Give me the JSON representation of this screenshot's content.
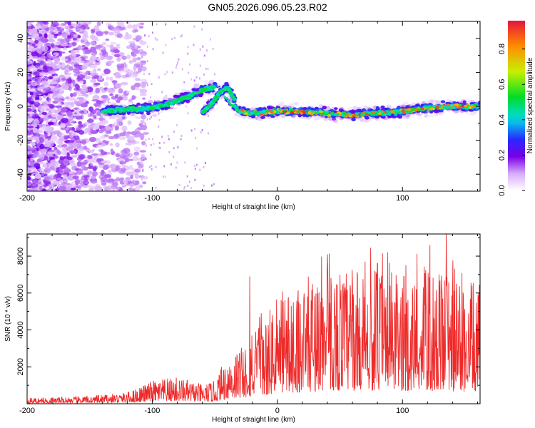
{
  "title": "GN05.2026.096.05.23.R02",
  "chart_data": [
    {
      "type": "heatmap",
      "xlabel": "Height of straight line (km)",
      "ylabel": "Frequency (Hz)",
      "xlim": [
        -200,
        162
      ],
      "ylim": [
        -50,
        50
      ],
      "xticks": [
        -200,
        -100,
        0,
        100
      ],
      "yticks": [
        -40,
        -20,
        0,
        20,
        40
      ],
      "colorbar": {
        "label": "Normalized spectral amplitude",
        "range": [
          0,
          0.96
        ],
        "ticks": [
          0.0,
          0.2,
          0.4,
          0.6,
          0.8
        ]
      },
      "ridge": {
        "x": [
          -140,
          -120,
          -100,
          -85,
          -70,
          -58,
          -50,
          -44,
          -38,
          -30,
          -20,
          0,
          20,
          40,
          60,
          80,
          100,
          120,
          140,
          160
        ],
        "y": [
          -3,
          -2,
          -1,
          2,
          6,
          10,
          11,
          9,
          3,
          -3,
          -4,
          -3,
          -3,
          -4,
          -5,
          -4,
          -3,
          -1,
          0,
          0
        ],
        "branch_x": [
          -60,
          -52,
          -46,
          -40,
          -34
        ],
        "branch_y": [
          -4,
          2,
          8,
          11,
          4
        ]
      }
    },
    {
      "type": "line",
      "xlabel": "Height of straight line (km)",
      "ylabel": "SNR (10 * v/v)",
      "xlim": [
        -200,
        162
      ],
      "ylim": [
        0,
        9200
      ],
      "xticks": [
        -200,
        -100,
        0,
        100
      ],
      "yticks": [
        2000,
        4000,
        6000,
        8000
      ],
      "series": [
        {
          "name": "SNR",
          "color": "#ee2a2a",
          "envelope_x": [
            -200,
            -150,
            -120,
            -100,
            -80,
            -60,
            -50,
            -40,
            -30,
            -20,
            -10,
            0,
            20,
            40,
            60,
            80,
            100,
            120,
            140,
            160
          ],
          "envelope_mean": [
            150,
            200,
            300,
            600,
            700,
            500,
            600,
            1300,
            1500,
            1800,
            2200,
            2800,
            3200,
            3600,
            3500,
            3500,
            3400,
            3500,
            3300,
            3100
          ],
          "peaks": [
            [
              -22,
              6900
            ],
            [
              40,
              8100
            ],
            [
              135,
              9200
            ],
            [
              122,
              8600
            ],
            [
              70,
              7700
            ],
            [
              80,
              7600
            ]
          ]
        }
      ]
    }
  ]
}
